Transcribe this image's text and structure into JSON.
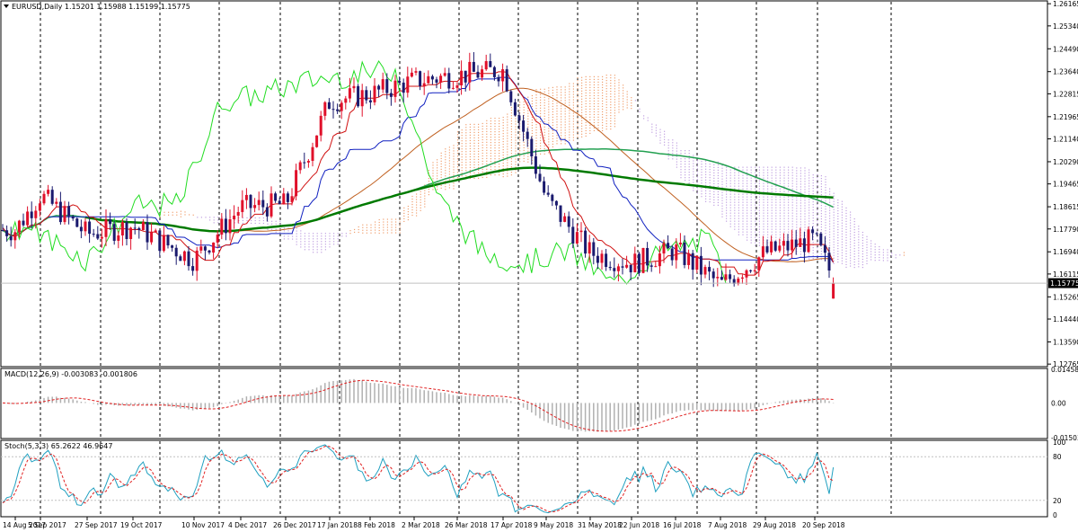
{
  "header": {
    "symbol_line": "EURUSD,Daily  1.15201 1.15988 1.15199 1.15775",
    "macd_label": "MACD(12,26,9) -0.003083 -0.001806",
    "stoch_label": "Stoch(5,3,3) 65.2622 46.9647"
  },
  "colors": {
    "bull_candle": "#e0102a",
    "bear_candle": "#1a1a6e",
    "tenkan": "#d01010",
    "kijun": "#1020c0",
    "chikou": "#22dd22",
    "ma_slow": "#007a00",
    "ma_mid": "#22a050",
    "ma_fast": "#c06020",
    "cloud_bull": "#f0a070",
    "cloud_bear": "#c0a0e0",
    "macd_hist": "#b0b0b0",
    "macd_signal": "#e02020",
    "stoch_main": "#20a0c0",
    "stoch_signal": "#e02020",
    "current_price_bg": "#000000"
  },
  "chart_data": [
    {
      "type": "candlestick",
      "title": "EURUSD,Daily",
      "ohlc_last": {
        "open": 1.15201,
        "high": 1.15988,
        "low": 1.15199,
        "close": 1.15775
      },
      "current_price_label": "1.15775",
      "y_ticks": [
        "1.26165",
        "1.25340",
        "1.24490",
        "1.23640",
        "1.22815",
        "1.21965",
        "1.21140",
        "1.20290",
        "1.19465",
        "1.18615",
        "1.17790",
        "1.16940",
        "1.16115",
        "1.15265",
        "1.14440",
        "1.13590",
        "1.12765"
      ],
      "ylim": [
        1.1277,
        1.2617
      ],
      "x_ticks": [
        "14 Aug 2017",
        "5 Sep 2017",
        "27 Sep 2017",
        "19 Oct 2017",
        "10 Nov 2017",
        "4 Dec 2017",
        "26 Dec 2017",
        "17 Jan 2018",
        "8 Feb 2018",
        "2 Mar 2018",
        "26 Mar 2018",
        "17 Apr 2018",
        "9 May 2018",
        "31 May 2018",
        "22 Jun 2018",
        "16 Jul 2018",
        "7 Aug 2018",
        "29 Aug 2018",
        "20 Sep 2018"
      ],
      "close_path": [
        {
          "x": "14 Aug 2017",
          "y": 1.1775
        },
        {
          "x": "5 Sep 2017",
          "y": 1.1905
        },
        {
          "x": "27 Sep 2017",
          "y": 1.176
        },
        {
          "x": "19 Oct 2017",
          "y": 1.179
        },
        {
          "x": "10 Nov 2017",
          "y": 1.1665
        },
        {
          "x": "4 Dec 2017",
          "y": 1.186
        },
        {
          "x": "26 Dec 2017",
          "y": 1.187
        },
        {
          "x": "17 Jan 2018",
          "y": 1.2255
        },
        {
          "x": "8 Feb 2018",
          "y": 1.228
        },
        {
          "x": "2 Mar 2018",
          "y": 1.233
        },
        {
          "x": "26 Mar 2018",
          "y": 1.235
        },
        {
          "x": "17 Apr 2018",
          "y": 1.237
        },
        {
          "x": "9 May 2018",
          "y": 1.189
        },
        {
          "x": "31 May 2018",
          "y": 1.169
        },
        {
          "x": "22 Jun 2018",
          "y": 1.165
        },
        {
          "x": "16 Jul 2018",
          "y": 1.17
        },
        {
          "x": "7 Aug 2018",
          "y": 1.157
        },
        {
          "x": "29 Aug 2018",
          "y": 1.169
        },
        {
          "x": "20 Sep 2018",
          "y": 1.174
        }
      ]
    },
    {
      "type": "line",
      "title": "MACD(12,26,9) -0.003083 -0.001806",
      "y_ticks": [
        "0.014582",
        "0.00",
        "-0.015033"
      ],
      "ylim": [
        -0.015033,
        0.014582
      ],
      "series": [
        {
          "name": "MACD",
          "values": [
            -0.003083
          ]
        },
        {
          "name": "Signal",
          "values": [
            -0.001806
          ]
        }
      ]
    },
    {
      "type": "line",
      "title": "Stoch(5,3,3) 65.2622 46.9647",
      "y_ticks": [
        "100",
        "80",
        "20",
        "0"
      ],
      "ylim": [
        0,
        100
      ],
      "series": [
        {
          "name": "Main",
          "values": [
            65.2622
          ]
        },
        {
          "name": "Signal",
          "values": [
            46.9647
          ]
        }
      ]
    }
  ]
}
